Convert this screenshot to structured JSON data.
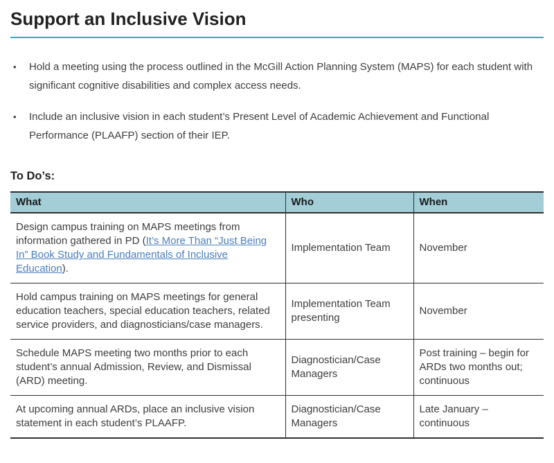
{
  "page": {
    "title": "Support an Inclusive Vision",
    "bullet_char": "•",
    "bullets": [
      "Hold a meeting using the process outlined in the McGill Action Planning System (MAPS) for each student with significant cognitive disabilities and complex access needs.",
      "Include an inclusive vision in each student’s Present Level of Academic Achievement and Functional Performance (PLAAFP) section of their IEP."
    ],
    "todos_heading": "To Do’s:"
  },
  "table": {
    "headers": {
      "what": "What",
      "who": "Who",
      "when": "When"
    },
    "rows": [
      {
        "what": {
          "prefix": "Design campus training on MAPS meetings from information gathered in PD (",
          "link": "It’s More Than “Just Being In” Book Study and Fundamentals of Inclusive Education",
          "suffix": ")."
        },
        "who": "Implementation Team",
        "when": "November"
      },
      {
        "what": {
          "text": "Hold campus training on MAPS meetings for general education teachers, special education teachers, related service providers, and diagnosticians/case managers."
        },
        "who": "Implementation Team presenting",
        "when": "November"
      },
      {
        "what": {
          "text": "Schedule MAPS meeting two months prior to each student’s annual Admission, Review, and Dismissal (ARD) meeting."
        },
        "who": "Diagnostician/Case Managers",
        "when": "Post training – begin for ARDs two months out; continuous"
      },
      {
        "what": {
          "text": "At upcoming annual ARDs, place an inclusive vision statement in each student’s PLAAFP."
        },
        "who": "Diagnostician/Case Managers",
        "when": "Late January – continuous"
      }
    ]
  },
  "colors": {
    "title_rule": "#29ABC7",
    "table_header_bg": "#A3CED8",
    "table_border": "#2F2F2F",
    "link": "#4A7EBF",
    "body_text": "#3D3D3D",
    "heading_text": "#1F1F1F"
  }
}
